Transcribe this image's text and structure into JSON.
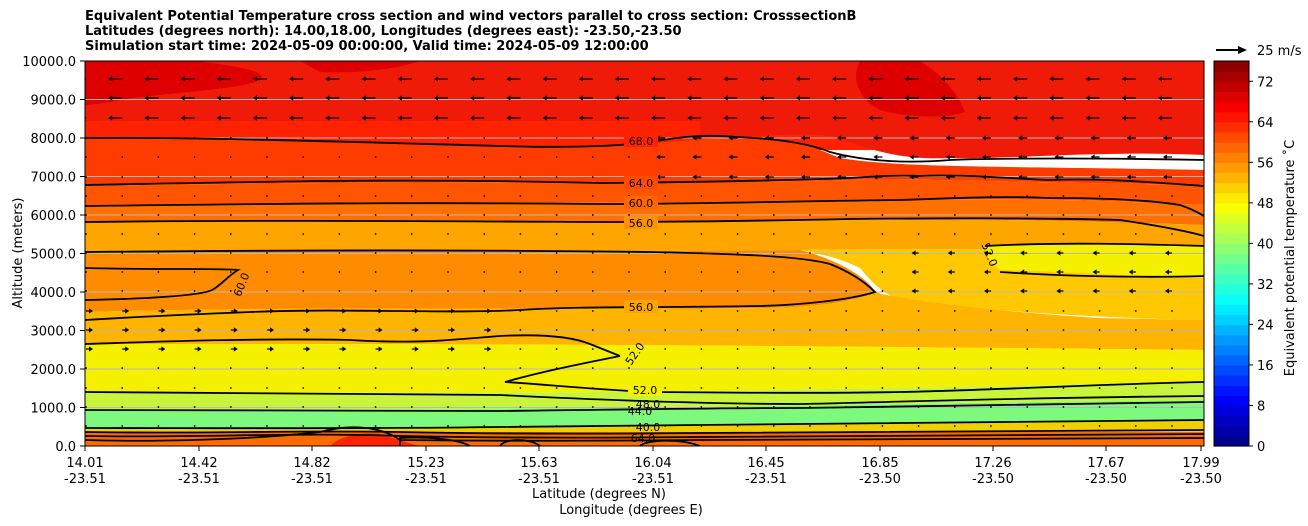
{
  "chart_data": {
    "type": "contour",
    "title_lines": [
      "Equivalent Potential Temperature cross section and wind vectors parallel to cross section: CrosssectionB",
      "Latitudes (degrees north): 14.00,18.00, Longitudes (degrees east): -23.50,-23.50",
      "Simulation start time: 2024-05-09 00:00:00, Valid time: 2024-05-09 12:00:00"
    ],
    "ylabel": "Altitude (meters)",
    "xlabel_lat": "Latitude (degrees N)",
    "xlabel_lon": "Longitude (degrees E)",
    "ylim": [
      0,
      10000
    ],
    "y_ticks": [
      "0.0",
      "1000.0",
      "2000.0",
      "3000.0",
      "4000.0",
      "5000.0",
      "6000.0",
      "7000.0",
      "8000.0",
      "9000.0",
      "10000.0"
    ],
    "x_ticks": [
      {
        "lat": "14.01",
        "lon": "-23.51"
      },
      {
        "lat": "14.42",
        "lon": "-23.51"
      },
      {
        "lat": "14.82",
        "lon": "-23.51"
      },
      {
        "lat": "15.23",
        "lon": "-23.51"
      },
      {
        "lat": "15.63",
        "lon": "-23.51"
      },
      {
        "lat": "16.04",
        "lon": "-23.51"
      },
      {
        "lat": "16.45",
        "lon": "-23.51"
      },
      {
        "lat": "16.85",
        "lon": "-23.50"
      },
      {
        "lat": "17.26",
        "lon": "-23.50"
      },
      {
        "lat": "17.67",
        "lon": "-23.50"
      },
      {
        "lat": "17.99",
        "lon": "-23.50"
      }
    ],
    "colorbar": {
      "label": "Equivalent potential temperature ˚C",
      "range": [
        0,
        76
      ],
      "ticks": [
        "0",
        "8",
        "16",
        "24",
        "32",
        "40",
        "48",
        "56",
        "64",
        "72"
      ]
    },
    "quiver_key": {
      "label": "25 m/s"
    },
    "contour_labels": [
      "68.0",
      "64.0",
      "60.0",
      "56.0",
      "56.0",
      "52.0",
      "52.0",
      "52.0",
      "48.0",
      "44.0",
      "40.0",
      "60.0",
      "64.0"
    ],
    "theta_e_profile": [
      {
        "alt": 0,
        "value": 62
      },
      {
        "alt": 300,
        "value": 62
      },
      {
        "alt": 500,
        "value": 42
      },
      {
        "alt": 900,
        "value": 45
      },
      {
        "alt": 1200,
        "value": 48
      },
      {
        "alt": 1500,
        "value": 51
      },
      {
        "alt": 2500,
        "value": 52
      },
      {
        "alt": 3500,
        "value": 56
      },
      {
        "alt": 4300,
        "value": 58
      },
      {
        "alt": 5000,
        "value": 55
      },
      {
        "alt": 6000,
        "value": 58
      },
      {
        "alt": 7000,
        "value": 64
      },
      {
        "alt": 8000,
        "value": 68
      },
      {
        "alt": 9000,
        "value": 70
      },
      {
        "alt": 10000,
        "value": 72
      }
    ]
  }
}
